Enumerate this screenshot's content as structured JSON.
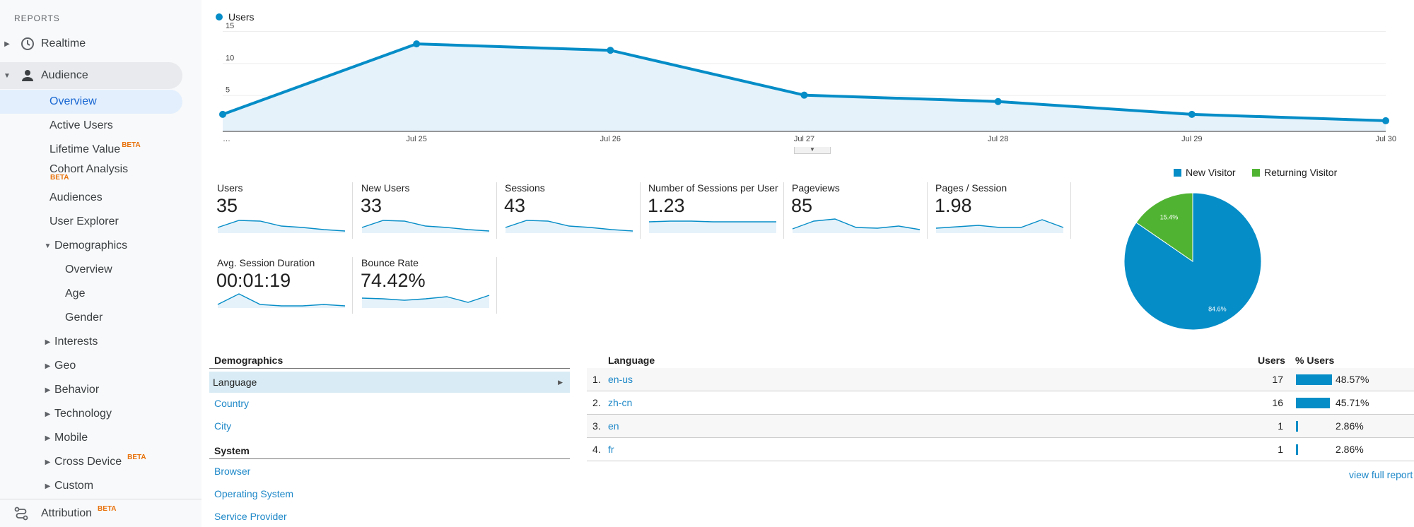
{
  "sidebar": {
    "header": "REPORTS",
    "realtime": "Realtime",
    "audience": "Audience",
    "overview": "Overview",
    "active_users": "Active Users",
    "lifetime_value": "Lifetime Value",
    "cohort_analysis": "Cohort Analysis",
    "audiences": "Audiences",
    "user_explorer": "User Explorer",
    "demographics": "Demographics",
    "demo_overview": "Overview",
    "demo_age": "Age",
    "demo_gender": "Gender",
    "interests": "Interests",
    "geo": "Geo",
    "behavior": "Behavior",
    "technology": "Technology",
    "mobile": "Mobile",
    "cross_device": "Cross Device",
    "custom": "Custom",
    "attribution": "Attribution",
    "beta": "BETA"
  },
  "line_legend": "Users",
  "chart_data": {
    "type": "area",
    "series": [
      {
        "name": "Users",
        "values": [
          2,
          13,
          12,
          5,
          4,
          2,
          1
        ]
      }
    ],
    "x": [
      "…",
      "Jul 25",
      "Jul 26",
      "Jul 27",
      "Jul 28",
      "Jul 29",
      "Jul 30"
    ],
    "y_ticks": [
      5,
      10,
      15
    ],
    "ylim": [
      0,
      15
    ],
    "color": "#058dc7",
    "grid": true
  },
  "metrics": [
    {
      "label": "Users",
      "value": "35"
    },
    {
      "label": "New Users",
      "value": "33"
    },
    {
      "label": "Sessions",
      "value": "43"
    },
    {
      "label": "Number of Sessions per User",
      "value": "1.23"
    },
    {
      "label": "Pageviews",
      "value": "85"
    },
    {
      "label": "Pages / Session",
      "value": "1.98"
    },
    {
      "label": "Avg. Session Duration",
      "value": "00:01:19"
    },
    {
      "label": "Bounce Rate",
      "value": "74.42%"
    }
  ],
  "pie": {
    "legend": [
      {
        "name": "New Visitor",
        "color": "#058dc7"
      },
      {
        "name": "Returning Visitor",
        "color": "#50b432"
      }
    ],
    "slices": [
      {
        "name": "New Visitor",
        "value": 84.6,
        "label": "84.6%"
      },
      {
        "name": "Returning Visitor",
        "value": 15.4,
        "label": "15.4%"
      }
    ]
  },
  "demographics_panel": {
    "title": "Demographics",
    "items": [
      "Language",
      "Country",
      "City"
    ],
    "system_title": "System",
    "system_items": [
      "Browser",
      "Operating System",
      "Service Provider"
    ]
  },
  "language_table": {
    "headers": {
      "language": "Language",
      "users": "Users",
      "pct": "% Users"
    },
    "rows": [
      {
        "num": "1.",
        "language": "en-us",
        "users": "17",
        "pct": "48.57%",
        "share": 48.57
      },
      {
        "num": "2.",
        "language": "zh-cn",
        "users": "16",
        "pct": "45.71%",
        "share": 45.71
      },
      {
        "num": "3.",
        "language": "en",
        "users": "1",
        "pct": "2.86%",
        "share": 2.86
      },
      {
        "num": "4.",
        "language": "fr",
        "users": "1",
        "pct": "2.86%",
        "share": 2.86
      }
    ],
    "full_report": "view full report"
  }
}
